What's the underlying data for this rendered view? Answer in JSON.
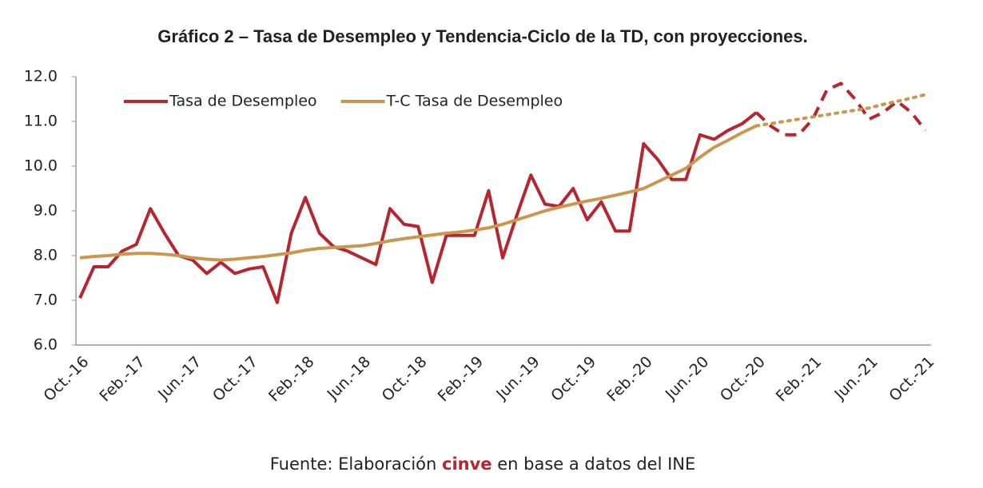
{
  "chart_data": {
    "type": "line",
    "title": "Gráfico 2 – Tasa de Desempleo y Tendencia-Ciclo de la TD, con proyecciones.",
    "source": {
      "prefix": "Fuente: Elaboración",
      "highlight": "cinve",
      "suffix": "en base a datos del INE"
    },
    "categories": [
      "Oct.-16",
      null,
      null,
      null,
      "Feb.-17",
      null,
      null,
      null,
      "Jun.-17",
      null,
      null,
      null,
      "Oct.-17",
      null,
      null,
      null,
      "Feb.-18",
      null,
      null,
      null,
      "Jun.-18",
      null,
      null,
      null,
      "Oct.-18",
      null,
      null,
      null,
      "Feb.-19",
      null,
      null,
      null,
      "Jun.-19",
      null,
      null,
      null,
      "Oct.-19",
      null,
      null,
      null,
      "Feb.-20",
      null,
      null,
      null,
      "Jun.-20",
      null,
      null,
      null,
      "Oct.-20",
      null,
      null,
      null,
      "Feb.-21",
      null,
      null,
      null,
      "Jun.-21",
      null,
      null,
      null,
      "Oct.-21"
    ],
    "forecast_from": "Oct.-20",
    "series": [
      {
        "name": "Tasa de Desempleo",
        "color": "#b5262f",
        "forecast_style": "dashed",
        "values": [
          7.05,
          7.75,
          7.75,
          8.1,
          8.25,
          9.05,
          8.5,
          8.0,
          7.9,
          7.6,
          7.85,
          7.6,
          7.7,
          7.75,
          6.95,
          8.5,
          9.3,
          8.5,
          8.2,
          8.1,
          7.95,
          7.8,
          9.05,
          8.7,
          8.65,
          7.4,
          8.45,
          8.45,
          8.45,
          9.45,
          7.95,
          8.9,
          9.8,
          9.15,
          9.1,
          9.5,
          8.8,
          9.2,
          8.55,
          8.55,
          10.5,
          10.15,
          9.7,
          9.7,
          10.7,
          10.6,
          10.8,
          10.95,
          11.2,
          10.9,
          10.7,
          10.7,
          11.05,
          11.7,
          11.85,
          11.5,
          11.05,
          11.2,
          11.45,
          11.2,
          10.8
        ]
      },
      {
        "name": "T-C Tasa de Desempleo",
        "color": "#c9974f",
        "forecast_style": "dotted",
        "values": [
          7.95,
          7.98,
          8.0,
          8.03,
          8.05,
          8.05,
          8.03,
          8.0,
          7.95,
          7.92,
          7.9,
          7.92,
          7.95,
          7.98,
          8.02,
          8.06,
          8.12,
          8.16,
          8.18,
          8.2,
          8.22,
          8.27,
          8.33,
          8.38,
          8.42,
          8.46,
          8.5,
          8.53,
          8.57,
          8.62,
          8.7,
          8.8,
          8.9,
          9.0,
          9.08,
          9.15,
          9.22,
          9.28,
          9.35,
          9.42,
          9.5,
          9.65,
          9.8,
          9.95,
          10.2,
          10.42,
          10.58,
          10.75,
          10.9,
          10.95,
          11.0,
          11.05,
          11.1,
          11.15,
          11.2,
          11.25,
          11.3,
          11.38,
          11.45,
          11.52,
          11.6
        ]
      }
    ],
    "ylim": [
      6,
      12
    ],
    "yticks": [
      {
        "value": 6,
        "label": "6.0"
      },
      {
        "value": 7,
        "label": "7.0"
      },
      {
        "value": 8,
        "label": "8.0"
      },
      {
        "value": 9,
        "label": "9.0"
      },
      {
        "value": 10,
        "label": "10.0"
      },
      {
        "value": 11,
        "label": "11.0"
      },
      {
        "value": 12,
        "label": "12.0"
      }
    ],
    "grid": false,
    "legend": "top-left"
  }
}
